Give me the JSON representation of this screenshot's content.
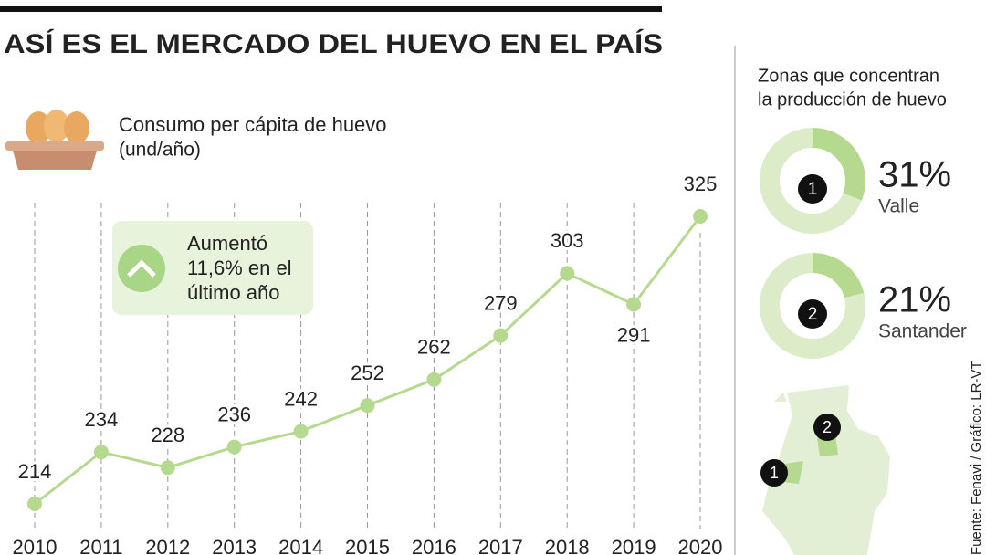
{
  "title": "ASÍ ES EL MERCADO DEL HUEVO EN EL PAÍS",
  "callout": {
    "lines": [
      "Aumentó",
      "11,6% en el",
      "último año"
    ]
  },
  "panel_title": [
    "Zonas que concentran",
    "la producción de huevo"
  ],
  "source": "Fuente: Fenavi / Gráfico: LR-VT",
  "chart_data": [
    {
      "type": "line",
      "title": "Consumo per cápita de huevo",
      "subtitle": "(und/año)",
      "categories": [
        "2010",
        "2011",
        "2012",
        "2013",
        "2014",
        "2015",
        "2016",
        "2017",
        "2018",
        "2019",
        "2020"
      ],
      "values": [
        214,
        234,
        228,
        236,
        242,
        252,
        262,
        279,
        303,
        291,
        325
      ],
      "color": "#b5d98f",
      "grid": true
    },
    {
      "type": "donut",
      "badge": "1",
      "name": "Valle",
      "values": [
        31
      ],
      "value_labels": [
        "31%"
      ],
      "color": "#b5d98f",
      "track_color": "#dcebc8"
    },
    {
      "type": "donut",
      "badge": "2",
      "name": "Santander",
      "values": [
        21
      ],
      "value_labels": [
        "21%"
      ],
      "color": "#b5d98f",
      "track_color": "#dcebc8"
    }
  ]
}
